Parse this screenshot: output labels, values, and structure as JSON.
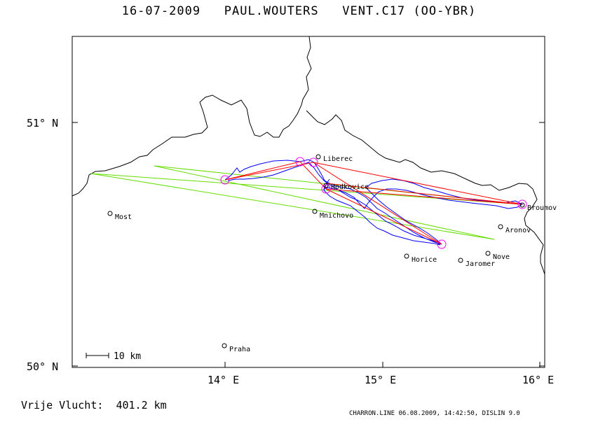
{
  "title": "16-07-2009   PAUL.WOUTERS   VENT.C17 (OO-YBR)",
  "lat_labels": [
    "51° N",
    "50° N"
  ],
  "lon_labels": [
    "14° E",
    "15° E",
    "16° E"
  ],
  "scale_label": "10 km",
  "places": [
    {
      "name": "Liberec"
    },
    {
      "name": "Hodkovice"
    },
    {
      "name": "Mnichovo"
    },
    {
      "name": "Most"
    },
    {
      "name": "Broumov"
    },
    {
      "name": "Aronov"
    },
    {
      "name": "Nove"
    },
    {
      "name": "Jaromer"
    },
    {
      "name": "Horice"
    },
    {
      "name": "Praha"
    }
  ],
  "distance": "Vrije Vlucht:  401.2 km",
  "footer": "CHARRON.LINE 06.08.2009, 14:42:50, DISLIN 9.0",
  "colors": {
    "track": "#0000ff",
    "task": "#ff0000",
    "sector": "#66dd00",
    "turnpoint": "#ff00ff",
    "border": "#000000"
  }
}
